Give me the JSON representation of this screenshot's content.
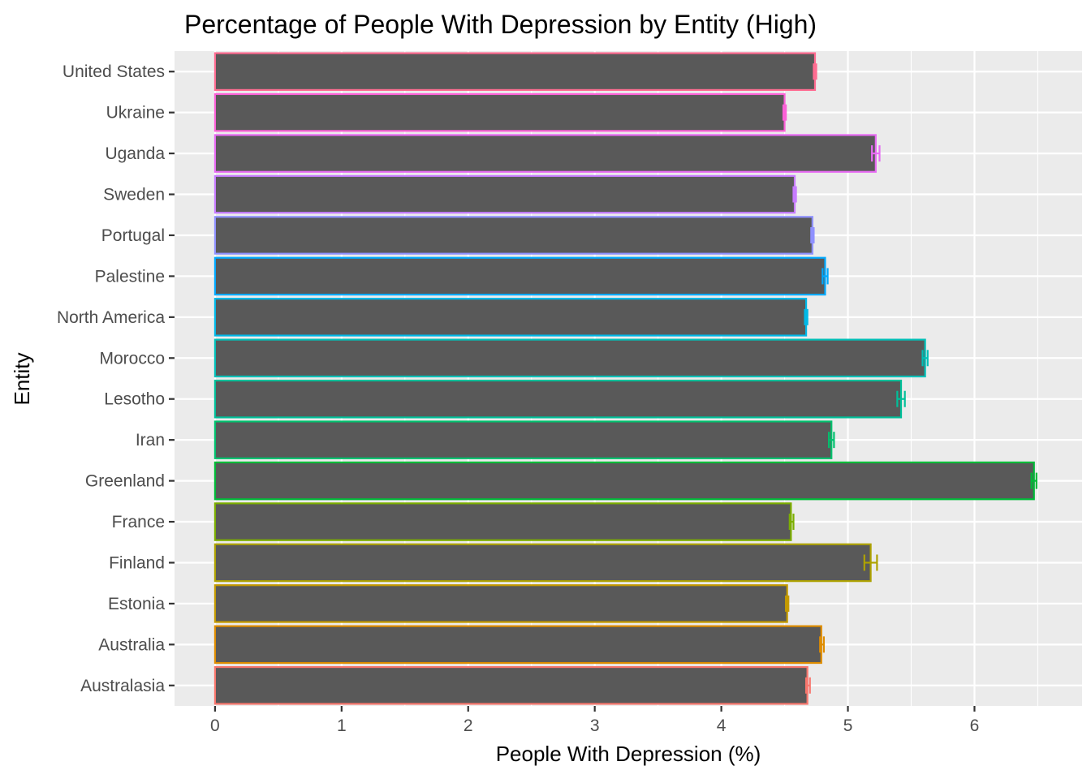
{
  "chart_data": {
    "type": "bar",
    "orientation": "horizontal",
    "title": "Percentage of People With Depression by Entity (High)",
    "xlabel": "People With Depression (%)",
    "ylabel": "Entity",
    "xlim": [
      -0.32,
      6.85
    ],
    "x_ticks": [
      0,
      1,
      2,
      3,
      4,
      5,
      6
    ],
    "grid": true,
    "legend": "none",
    "bar_fill": "#595959",
    "panel_background": "#ebebeb",
    "grid_color": "#ffffff",
    "categories": [
      "United States",
      "Ukraine",
      "Uganda",
      "Sweden",
      "Portugal",
      "Palestine",
      "North America",
      "Morocco",
      "Lesotho",
      "Iran",
      "Greenland",
      "France",
      "Finland",
      "Estonia",
      "Australia",
      "Australasia"
    ],
    "values": [
      4.74,
      4.5,
      5.22,
      4.58,
      4.72,
      4.82,
      4.67,
      5.61,
      5.42,
      4.87,
      6.47,
      4.55,
      5.18,
      4.52,
      4.79,
      4.68
    ],
    "error_low": [
      4.73,
      4.49,
      5.19,
      4.57,
      4.71,
      4.8,
      4.66,
      5.59,
      5.39,
      4.85,
      6.45,
      4.54,
      5.13,
      4.51,
      4.78,
      4.67
    ],
    "error_high": [
      4.75,
      4.51,
      5.25,
      4.59,
      4.73,
      4.84,
      4.68,
      5.63,
      5.45,
      4.89,
      6.49,
      4.57,
      5.23,
      4.53,
      4.81,
      4.7
    ],
    "outline_colors": [
      "#FF6C91",
      "#FB61D7",
      "#E76BF3",
      "#C77CFF",
      "#8F91FF",
      "#00A9FF",
      "#00B8E7",
      "#00C0B8",
      "#00BF99",
      "#00C16E",
      "#00BA38",
      "#7CAE00",
      "#AEA200",
      "#C49A00",
      "#DE8C00",
      "#F8766D"
    ]
  }
}
